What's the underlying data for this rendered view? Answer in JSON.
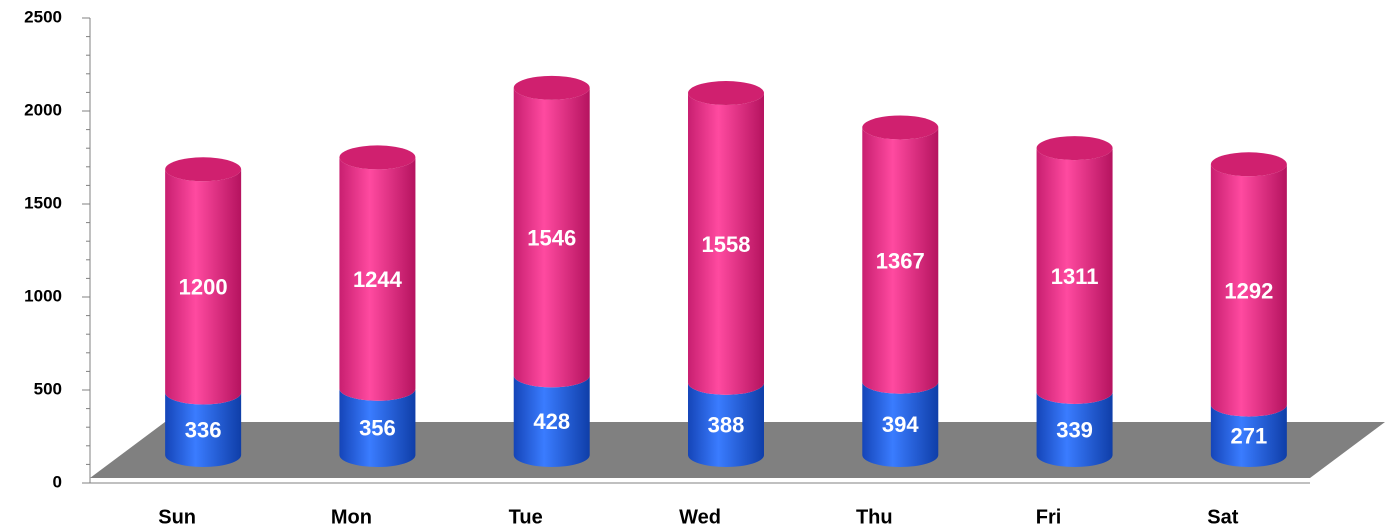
{
  "chart_data": {
    "type": "bar",
    "stacked": true,
    "categories": [
      "Sun",
      "Mon",
      "Tue",
      "Wed",
      "Thu",
      "Fri",
      "Sat"
    ],
    "series": [
      {
        "color": "#1f5fe0",
        "values": [
          336,
          356,
          428,
          388,
          394,
          339,
          271
        ]
      },
      {
        "color": "#e8338a",
        "values": [
          1200,
          1244,
          1546,
          1558,
          1367,
          1311,
          1292
        ]
      }
    ],
    "ylim": [
      0,
      2500
    ],
    "yticks": [
      0,
      500,
      1000,
      1500,
      2000,
      2500
    ]
  }
}
